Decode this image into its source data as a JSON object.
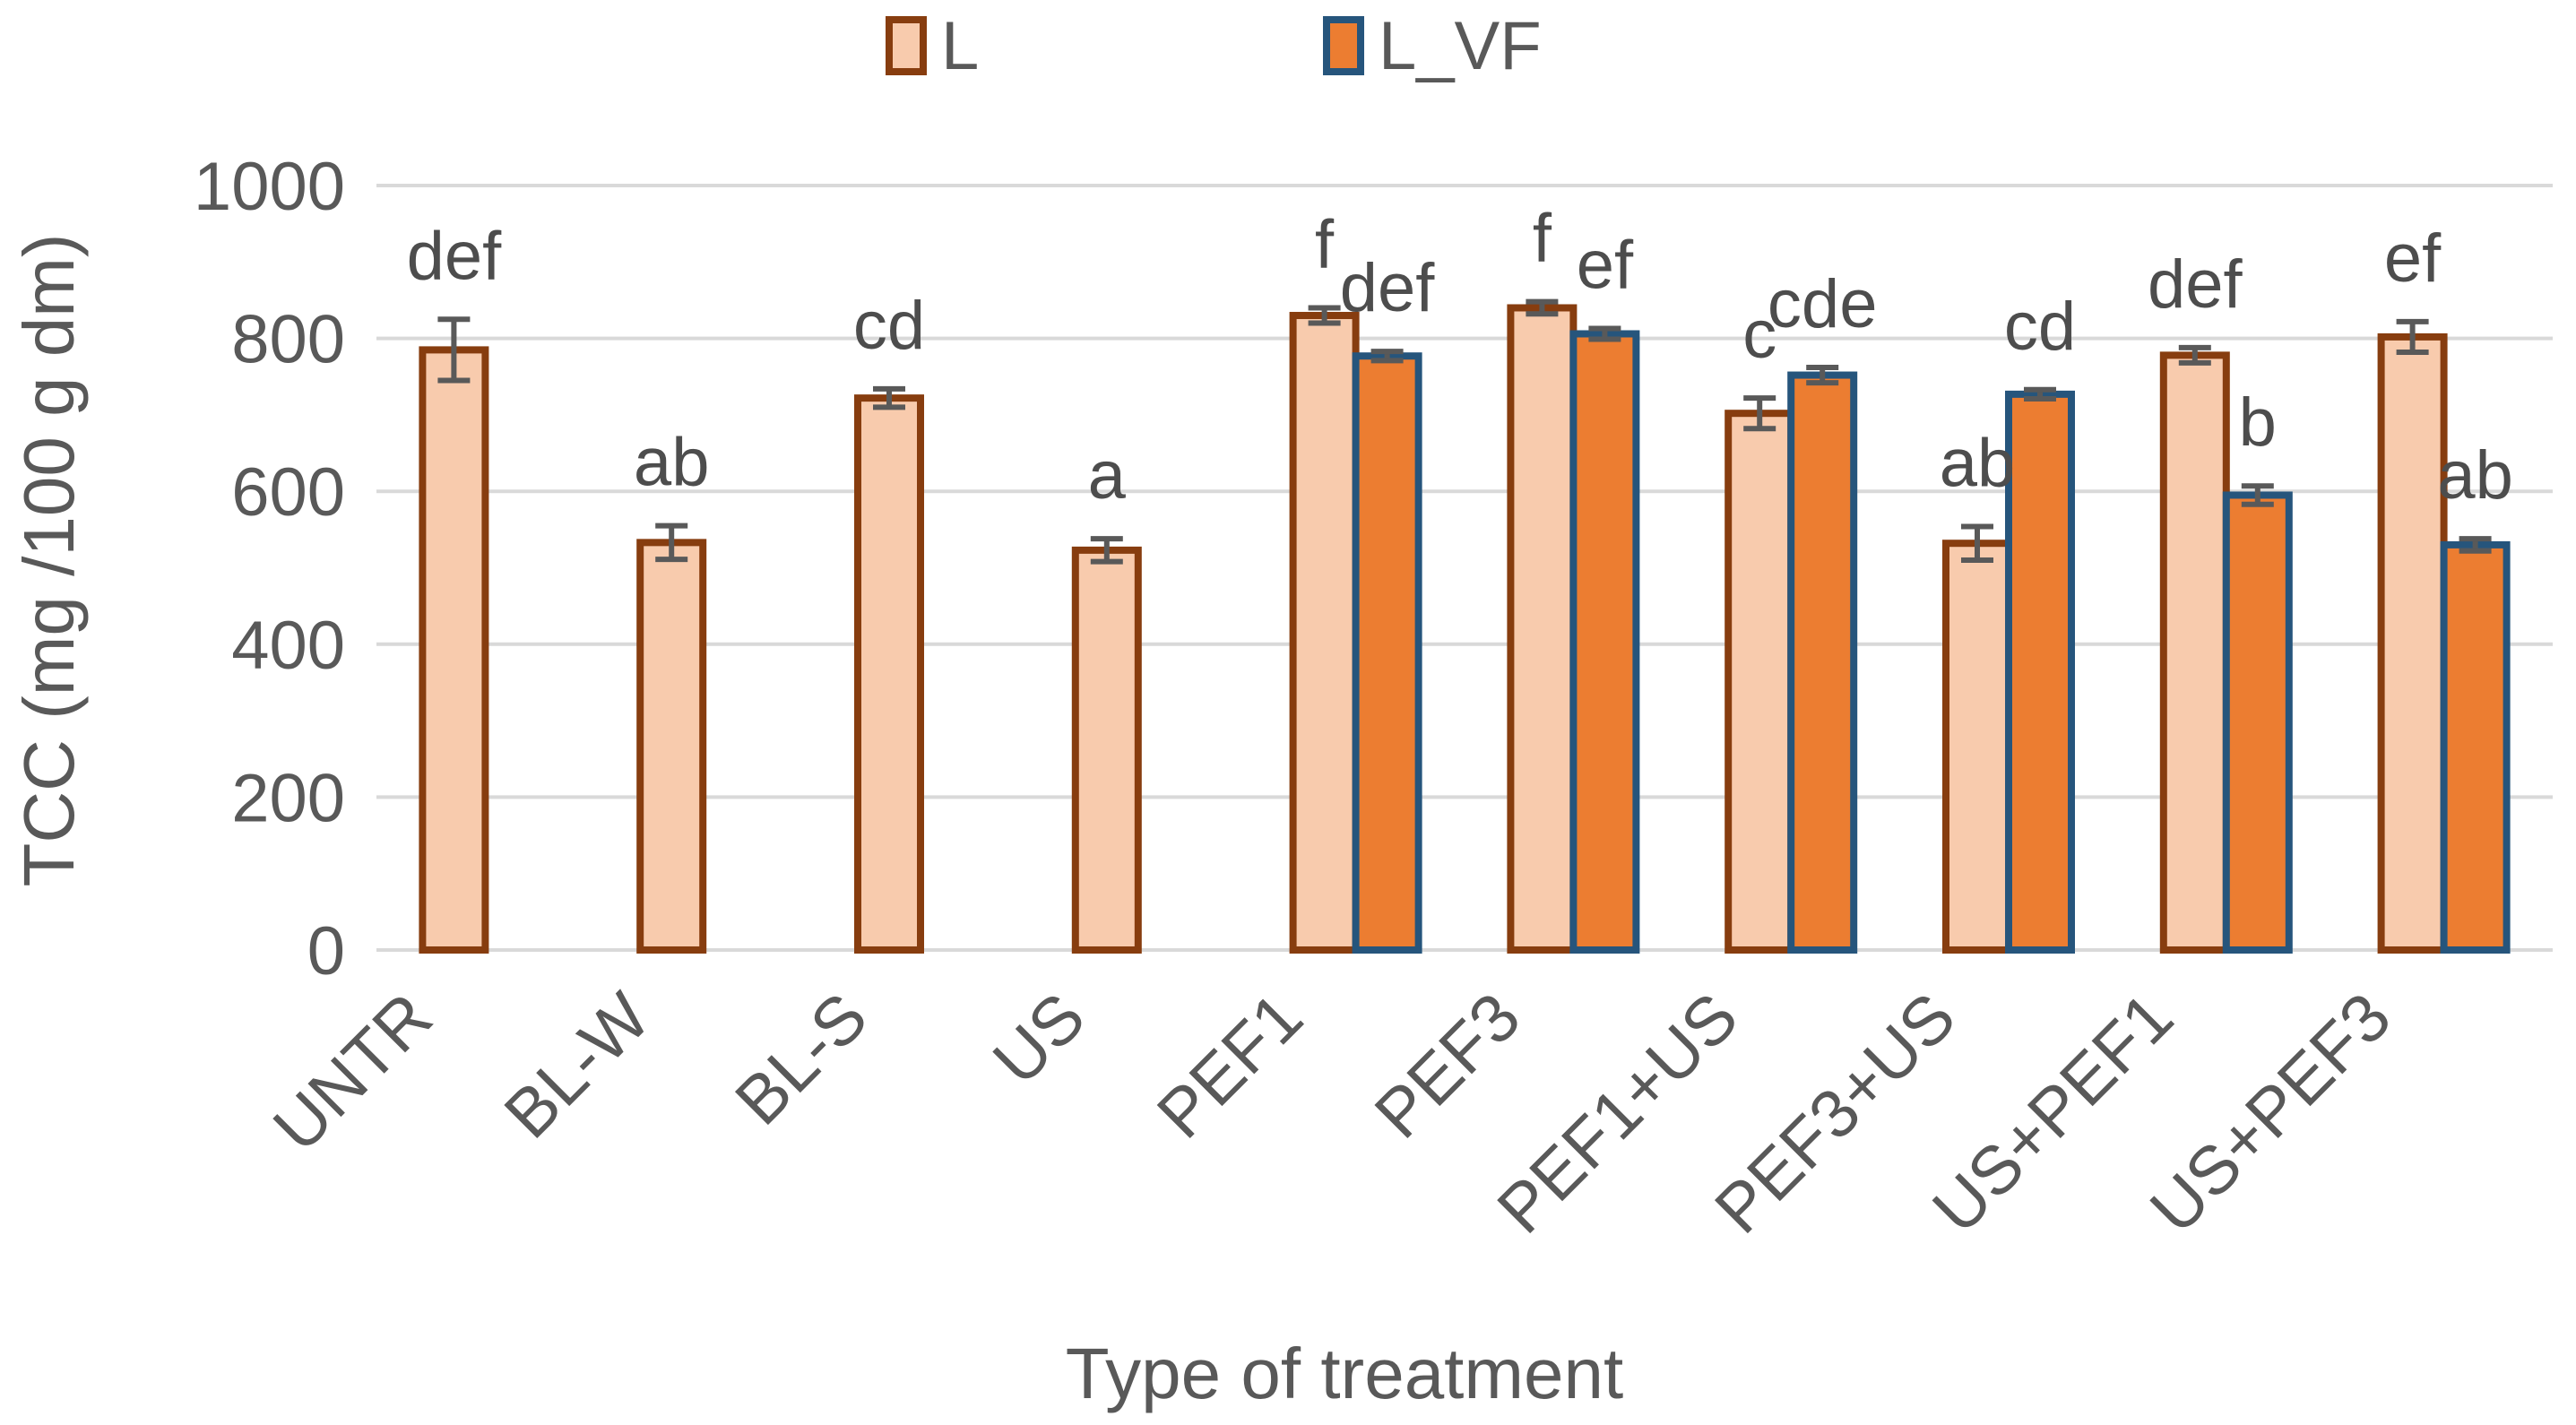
{
  "chart_data": {
    "type": "bar",
    "title": "",
    "xlabel": "Type of treatment",
    "ylabel": "TCC (mg /100 g dm)",
    "ylim": [
      0,
      1000
    ],
    "yticks": [
      0,
      200,
      400,
      600,
      800,
      1000
    ],
    "grid": true,
    "legend_position": "top-center",
    "categories": [
      "UNTR",
      "BL-W",
      "BL-S",
      "US",
      "PEF1",
      "PEF3",
      "PEF1+US",
      "PEF3+US",
      "US+PEF1",
      "US+PEF3"
    ],
    "series": [
      {
        "name": "L",
        "fill": "#F8CBAD",
        "border": "#873D0F",
        "values": [
          785,
          533,
          722,
          523,
          830,
          840,
          702,
          532,
          778,
          802
        ],
        "errors": [
          40,
          22,
          12,
          15,
          10,
          8,
          20,
          22,
          10,
          20
        ],
        "letters": [
          "def",
          "ab",
          "cd",
          "a",
          "f",
          "f",
          "c",
          "ab",
          "def",
          "ef"
        ]
      },
      {
        "name": "L_VF",
        "fill": "#EC7D31",
        "border": "#26557C",
        "values": [
          null,
          null,
          null,
          null,
          777,
          806,
          752,
          727,
          595,
          530
        ],
        "errors": [
          null,
          null,
          null,
          null,
          6,
          7,
          10,
          6,
          12,
          8
        ],
        "letters": [
          "",
          "",
          "",
          "",
          "def",
          "ef",
          "cde",
          "cd",
          "b",
          "ab"
        ]
      }
    ],
    "error_bar_color": "#595959",
    "gridline_color": "#D9D9D9",
    "text_color": "#595959",
    "background_color": "#FFFFFF"
  }
}
